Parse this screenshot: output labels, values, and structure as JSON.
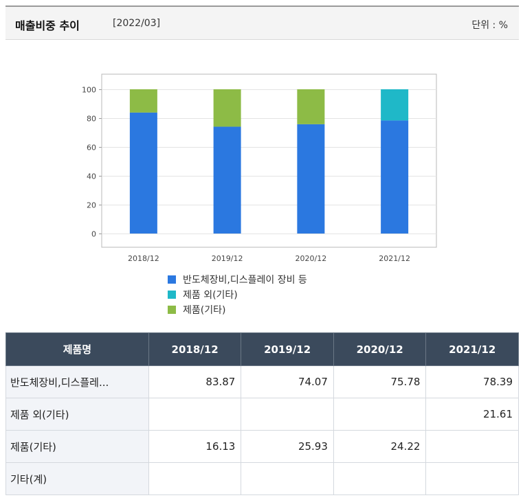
{
  "header": {
    "title": "매출비중 추이",
    "date": "[2022/03]",
    "unit": "단위 : %"
  },
  "colors": {
    "series1": "#2b78e0",
    "series2": "#1fb8c8",
    "series3": "#8dbb46",
    "table_header": "#3b4a5c"
  },
  "chart_data": {
    "type": "bar",
    "stacked": true,
    "categories": [
      "2018/12",
      "2019/12",
      "2020/12",
      "2021/12"
    ],
    "series": [
      {
        "name": "반도체장비,디스플레이 장비 등",
        "values": [
          83.87,
          74.07,
          75.78,
          78.39
        ]
      },
      {
        "name": "제품 외(기타)",
        "values": [
          0,
          0,
          0,
          21.61
        ]
      },
      {
        "name": "제품(기타)",
        "values": [
          16.13,
          25.93,
          24.22,
          0
        ]
      }
    ],
    "ylim": [
      0,
      100
    ],
    "yticks": [
      0,
      20,
      40,
      60,
      80,
      100
    ],
    "grid": true,
    "legend_position": "bottom"
  },
  "table": {
    "headers": [
      "제품명",
      "2018/12",
      "2019/12",
      "2020/12",
      "2021/12"
    ],
    "rows": [
      {
        "name": "반도체장비,디스플레...",
        "values": [
          "83.87",
          "74.07",
          "75.78",
          "78.39"
        ]
      },
      {
        "name": "제품 외(기타)",
        "values": [
          "",
          "",
          "",
          "21.61"
        ]
      },
      {
        "name": "제품(기타)",
        "values": [
          "16.13",
          "25.93",
          "24.22",
          ""
        ]
      },
      {
        "name": "기타(계)",
        "values": [
          "",
          "",
          "",
          ""
        ]
      }
    ]
  }
}
